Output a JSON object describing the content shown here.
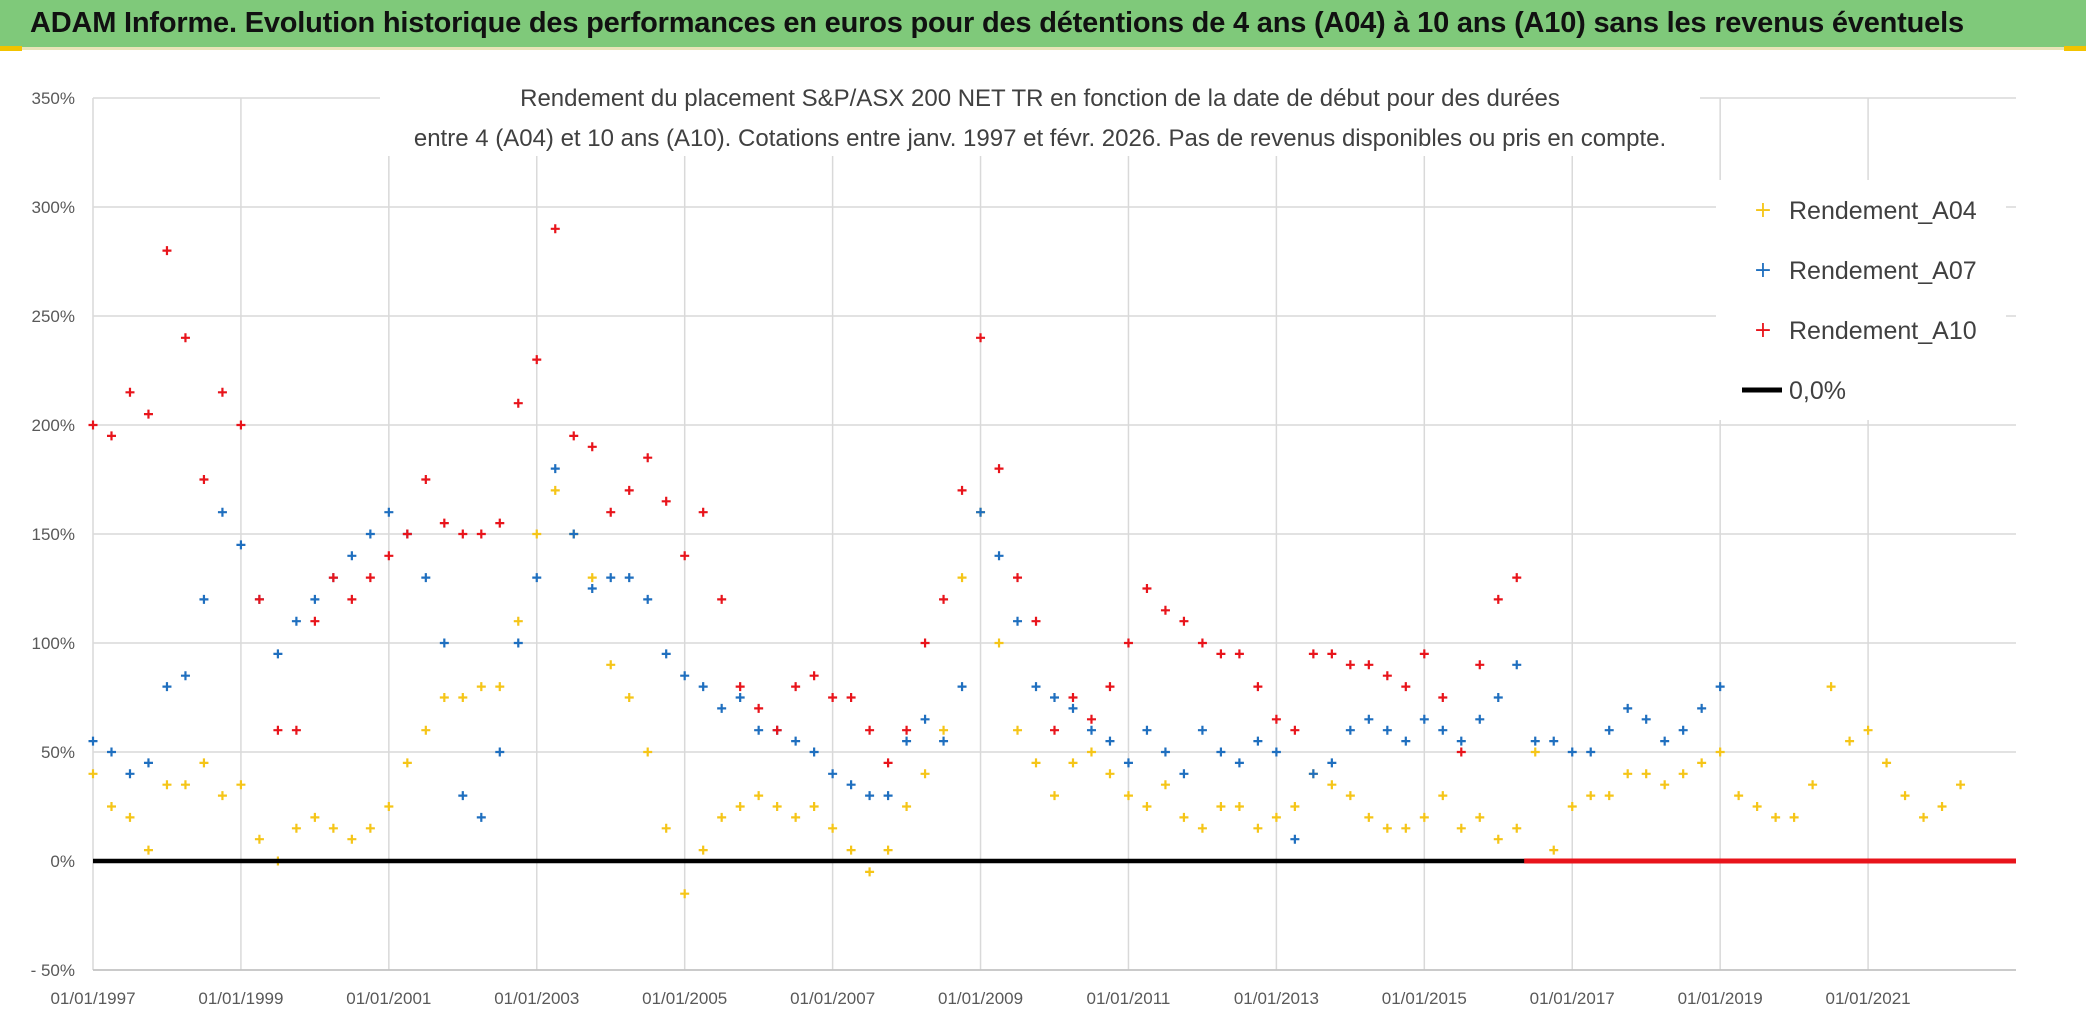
{
  "header": {
    "title": "ADAM Informe. Evolution historique des performances en euros pour des détentions de 4 ans (A04) à 10 ans (A10) sans les revenus éventuels"
  },
  "chart_data": {
    "type": "scatter",
    "title_lines": [
      "Rendement du placement S&P/ASX 200 NET TR en fonction de la date de début pour des durées",
      "entre 4 (A04) et 10 ans (A10). Cotations entre janv. 1997 et févr. 2026. Pas de revenus disponibles ou pris en compte."
    ],
    "xlabel": "",
    "ylabel": "",
    "x_range": [
      "01/01/1997",
      "31/12/2022"
    ],
    "x_ticks": [
      "01/01/1997",
      "01/01/1999",
      "01/01/2001",
      "01/01/2003",
      "01/01/2005",
      "01/01/2007",
      "01/01/2009",
      "01/01/2011",
      "01/01/2013",
      "01/01/2015",
      "01/01/2017",
      "01/01/2019",
      "01/01/2021"
    ],
    "ylim": [
      -50,
      350
    ],
    "y_ticks": [
      -50,
      0,
      50,
      100,
      150,
      200,
      250,
      300,
      350
    ],
    "y_tick_labels": [
      "- 50%",
      "0%",
      "50%",
      "100%",
      "150%",
      "200%",
      "250%",
      "300%",
      "350%"
    ],
    "grid": true,
    "legend_position": "top-right",
    "colors": {
      "A04": "#f5c518",
      "A07": "#1f6fbf",
      "A10": "#e8141b",
      "zero": "#000000"
    },
    "series": [
      {
        "key": "A04",
        "name": "Rendement_A04",
        "x": [
          1997.0,
          1997.25,
          1997.5,
          1997.75,
          1998.0,
          1998.25,
          1998.5,
          1998.75,
          1999.0,
          1999.25,
          1999.5,
          1999.75,
          2000.0,
          2000.25,
          2000.5,
          2000.75,
          2001.0,
          2001.25,
          2001.5,
          2001.75,
          2002.0,
          2002.25,
          2002.5,
          2002.75,
          2003.0,
          2003.25,
          2003.5,
          2003.75,
          2004.0,
          2004.25,
          2004.5,
          2004.75,
          2005.0,
          2005.25,
          2005.5,
          2005.75,
          2006.0,
          2006.25,
          2006.5,
          2006.75,
          2007.0,
          2007.25,
          2007.5,
          2007.75,
          2008.0,
          2008.25,
          2008.5,
          2008.75,
          2009.0,
          2009.25,
          2009.5,
          2009.75,
          2010.0,
          2010.25,
          2010.5,
          2010.75,
          2011.0,
          2011.25,
          2011.5,
          2011.75,
          2012.0,
          2012.25,
          2012.5,
          2012.75,
          2013.0,
          2013.25,
          2013.5,
          2013.75,
          2014.0,
          2014.25,
          2014.5,
          2014.75,
          2015.0,
          2015.25,
          2015.5,
          2015.75,
          2016.0,
          2016.25,
          2016.5,
          2016.75,
          2017.0,
          2017.25,
          2017.5,
          2017.75,
          2018.0,
          2018.25,
          2018.5,
          2018.75,
          2019.0,
          2019.25,
          2019.5,
          2019.75,
          2020.0,
          2020.25,
          2020.5,
          2020.75,
          2021.0,
          2021.25,
          2021.5,
          2021.75,
          2022.0,
          2022.25
        ],
        "y": [
          40,
          25,
          20,
          5,
          35,
          35,
          45,
          30,
          35,
          10,
          0,
          15,
          20,
          15,
          10,
          15,
          25,
          45,
          60,
          75,
          75,
          80,
          80,
          110,
          150,
          170,
          150,
          130,
          90,
          75,
          50,
          15,
          -15,
          5,
          20,
          25,
          30,
          25,
          20,
          25,
          15,
          5,
          -5,
          5,
          25,
          40,
          60,
          130,
          160,
          100,
          60,
          45,
          30,
          45,
          50,
          40,
          30,
          25,
          35,
          20,
          15,
          25,
          25,
          15,
          20,
          25,
          40,
          35,
          30,
          20,
          15,
          15,
          20,
          30,
          15,
          20,
          10,
          15,
          50,
          5,
          25,
          30,
          30,
          40,
          40,
          35,
          40,
          45,
          50,
          30,
          25,
          20,
          20,
          35,
          80,
          55,
          60,
          45,
          30,
          20,
          25,
          35
        ]
      },
      {
        "key": "A07",
        "name": "Rendement_A07",
        "x": [
          1997.0,
          1997.25,
          1997.5,
          1997.75,
          1998.0,
          1998.25,
          1998.5,
          1998.75,
          1999.0,
          1999.25,
          1999.5,
          1999.75,
          2000.0,
          2000.25,
          2000.5,
          2000.75,
          2001.0,
          2001.25,
          2001.5,
          2001.75,
          2002.0,
          2002.25,
          2002.5,
          2002.75,
          2003.0,
          2003.25,
          2003.5,
          2003.75,
          2004.0,
          2004.25,
          2004.5,
          2004.75,
          2005.0,
          2005.25,
          2005.5,
          2005.75,
          2006.0,
          2006.25,
          2006.5,
          2006.75,
          2007.0,
          2007.25,
          2007.5,
          2007.75,
          2008.0,
          2008.25,
          2008.5,
          2008.75,
          2009.0,
          2009.25,
          2009.5,
          2009.75,
          2010.0,
          2010.25,
          2010.5,
          2010.75,
          2011.0,
          2011.25,
          2011.5,
          2011.75,
          2012.0,
          2012.25,
          2012.5,
          2012.75,
          2013.0,
          2013.25,
          2013.5,
          2013.75,
          2014.0,
          2014.25,
          2014.5,
          2014.75,
          2015.0,
          2015.25,
          2015.5,
          2015.75,
          2016.0,
          2016.25,
          2016.5,
          2016.75,
          2017.0,
          2017.25,
          2017.5,
          2017.75,
          2018.0,
          2018.25,
          2018.5,
          2018.75,
          2019.0
        ],
        "y": [
          55,
          50,
          40,
          45,
          80,
          85,
          120,
          160,
          145,
          120,
          95,
          110,
          120,
          130,
          140,
          150,
          160,
          150,
          130,
          100,
          30,
          20,
          50,
          100,
          130,
          180,
          150,
          125,
          130,
          130,
          120,
          95,
          85,
          80,
          70,
          75,
          60,
          60,
          55,
          50,
          40,
          35,
          30,
          30,
          55,
          65,
          55,
          80,
          160,
          140,
          110,
          80,
          75,
          70,
          60,
          55,
          45,
          60,
          50,
          40,
          60,
          50,
          45,
          55,
          50,
          10,
          40,
          45,
          60,
          65,
          60,
          55,
          65,
          60,
          55,
          65,
          75,
          90,
          55,
          55,
          50,
          50,
          60,
          70,
          65,
          55,
          60,
          70,
          80
        ]
      },
      {
        "key": "A10",
        "name": "Rendement_A10",
        "x": [
          1997.0,
          1997.25,
          1997.5,
          1997.75,
          1998.0,
          1998.25,
          1998.5,
          1998.75,
          1999.0,
          1999.25,
          1999.5,
          1999.75,
          2000.0,
          2000.25,
          2000.5,
          2000.75,
          2001.0,
          2001.25,
          2001.5,
          2001.75,
          2002.0,
          2002.25,
          2002.5,
          2002.75,
          2003.0,
          2003.25,
          2003.5,
          2003.75,
          2004.0,
          2004.25,
          2004.5,
          2004.75,
          2005.0,
          2005.25,
          2005.5,
          2005.75,
          2006.0,
          2006.25,
          2006.5,
          2006.75,
          2007.0,
          2007.25,
          2007.5,
          2007.75,
          2008.0,
          2008.25,
          2008.5,
          2008.75,
          2009.0,
          2009.25,
          2009.5,
          2009.75,
          2010.0,
          2010.25,
          2010.5,
          2010.75,
          2011.0,
          2011.25,
          2011.5,
          2011.75,
          2012.0,
          2012.25,
          2012.5,
          2012.75,
          2013.0,
          2013.25,
          2013.5,
          2013.75,
          2014.0,
          2014.25,
          2014.5,
          2014.75,
          2015.0,
          2015.25,
          2015.5,
          2015.75,
          2016.0,
          2016.25
        ],
        "y": [
          200,
          195,
          215,
          205,
          280,
          240,
          175,
          215,
          200,
          120,
          60,
          60,
          110,
          130,
          120,
          130,
          140,
          150,
          175,
          155,
          150,
          150,
          155,
          210,
          230,
          290,
          195,
          190,
          160,
          170,
          185,
          165,
          140,
          160,
          120,
          80,
          70,
          60,
          80,
          85,
          75,
          75,
          60,
          45,
          60,
          100,
          120,
          170,
          240,
          180,
          130,
          110,
          60,
          75,
          65,
          80,
          100,
          125,
          115,
          110,
          100,
          95,
          95,
          80,
          65,
          60,
          95,
          95,
          90,
          90,
          85,
          80,
          95,
          75,
          50,
          90,
          120,
          130
        ]
      }
    ],
    "zero_line": {
      "name": "0,0%",
      "value": 0
    }
  }
}
